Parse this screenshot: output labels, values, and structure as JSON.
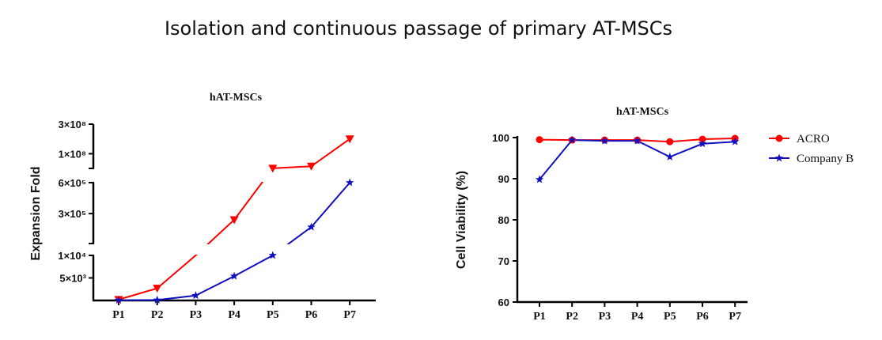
{
  "title": "Isolation and continuous passage of primary AT-MSCs",
  "chart_data": [
    {
      "type": "line",
      "title": "hAT-MSCs",
      "ylabel": "Expansion Fold",
      "yscale": "broken (three segments)",
      "categories": [
        "P1",
        "P2",
        "P3",
        "P4",
        "P5",
        "P6",
        "P7"
      ],
      "y_segments": [
        {
          "ylim": [
            0,
            10000
          ],
          "ticks": [
            5000,
            10000
          ],
          "tick_labels": [
            "5×10³",
            "1×10⁴"
          ]
        },
        {
          "ylim": [
            10000,
            600000
          ],
          "ticks": [
            300000,
            600000
          ],
          "tick_labels": [
            "3×10⁵",
            "6×10⁵"
          ]
        },
        {
          "ylim": [
            600000,
            300000000
          ],
          "ticks": [
            100000000,
            300000000
          ],
          "tick_labels": [
            "1×10⁸",
            "3×10⁸"
          ]
        }
      ],
      "series": [
        {
          "name": "ACRO",
          "color": "#ff0000",
          "marker": "triangle-down",
          "values": [
            200,
            2700,
            10000,
            240000,
            1500000,
            15000000,
            200000000
          ]
        },
        {
          "name": "Company B",
          "color": "#1010c0",
          "marker": "star",
          "values": [
            50,
            100,
            1100,
            5400,
            10000,
            170000,
            600000
          ]
        }
      ]
    },
    {
      "type": "line",
      "title": "hAT-MSCs",
      "ylabel": "Cell Viability (%)",
      "ylim": [
        60,
        100
      ],
      "yticks": [
        60,
        70,
        80,
        90,
        100
      ],
      "categories": [
        "P1",
        "P2",
        "P3",
        "P4",
        "P5",
        "P6",
        "P7"
      ],
      "series": [
        {
          "name": "ACRO",
          "color": "#ff0000",
          "marker": "circle",
          "values": [
            99.5,
            99.4,
            99.4,
            99.4,
            99.0,
            99.6,
            99.8
          ]
        },
        {
          "name": "Company B",
          "color": "#1010c0",
          "marker": "star",
          "values": [
            89.8,
            99.4,
            99.2,
            99.2,
            95.3,
            98.5,
            99.0
          ]
        }
      ]
    }
  ]
}
